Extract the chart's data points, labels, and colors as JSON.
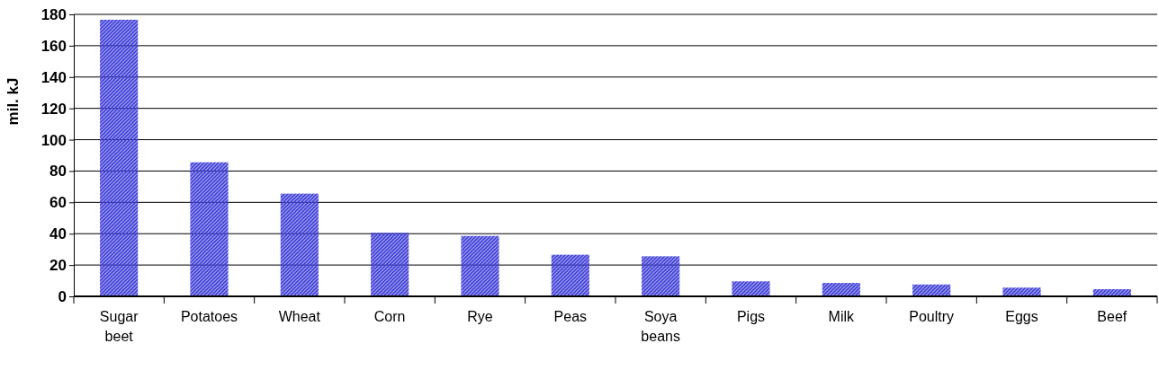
{
  "chart_data": {
    "type": "bar",
    "ylabel": "mil. kJ",
    "categories": [
      "Sugar beet",
      "Potatoes",
      "Wheat",
      "Corn",
      "Rye",
      "Peas",
      "Soya beans",
      "Pigs",
      "Milk",
      "Poultry",
      "Eggs",
      "Beef"
    ],
    "values": [
      176,
      85,
      65,
      40,
      38,
      26,
      25,
      9,
      8,
      7,
      5,
      4
    ],
    "color": "#3f3fd8",
    "ylim": [
      0,
      180
    ],
    "yticks": [
      0,
      20,
      40,
      60,
      80,
      100,
      120,
      140,
      160,
      180
    ],
    "grid": "y"
  }
}
